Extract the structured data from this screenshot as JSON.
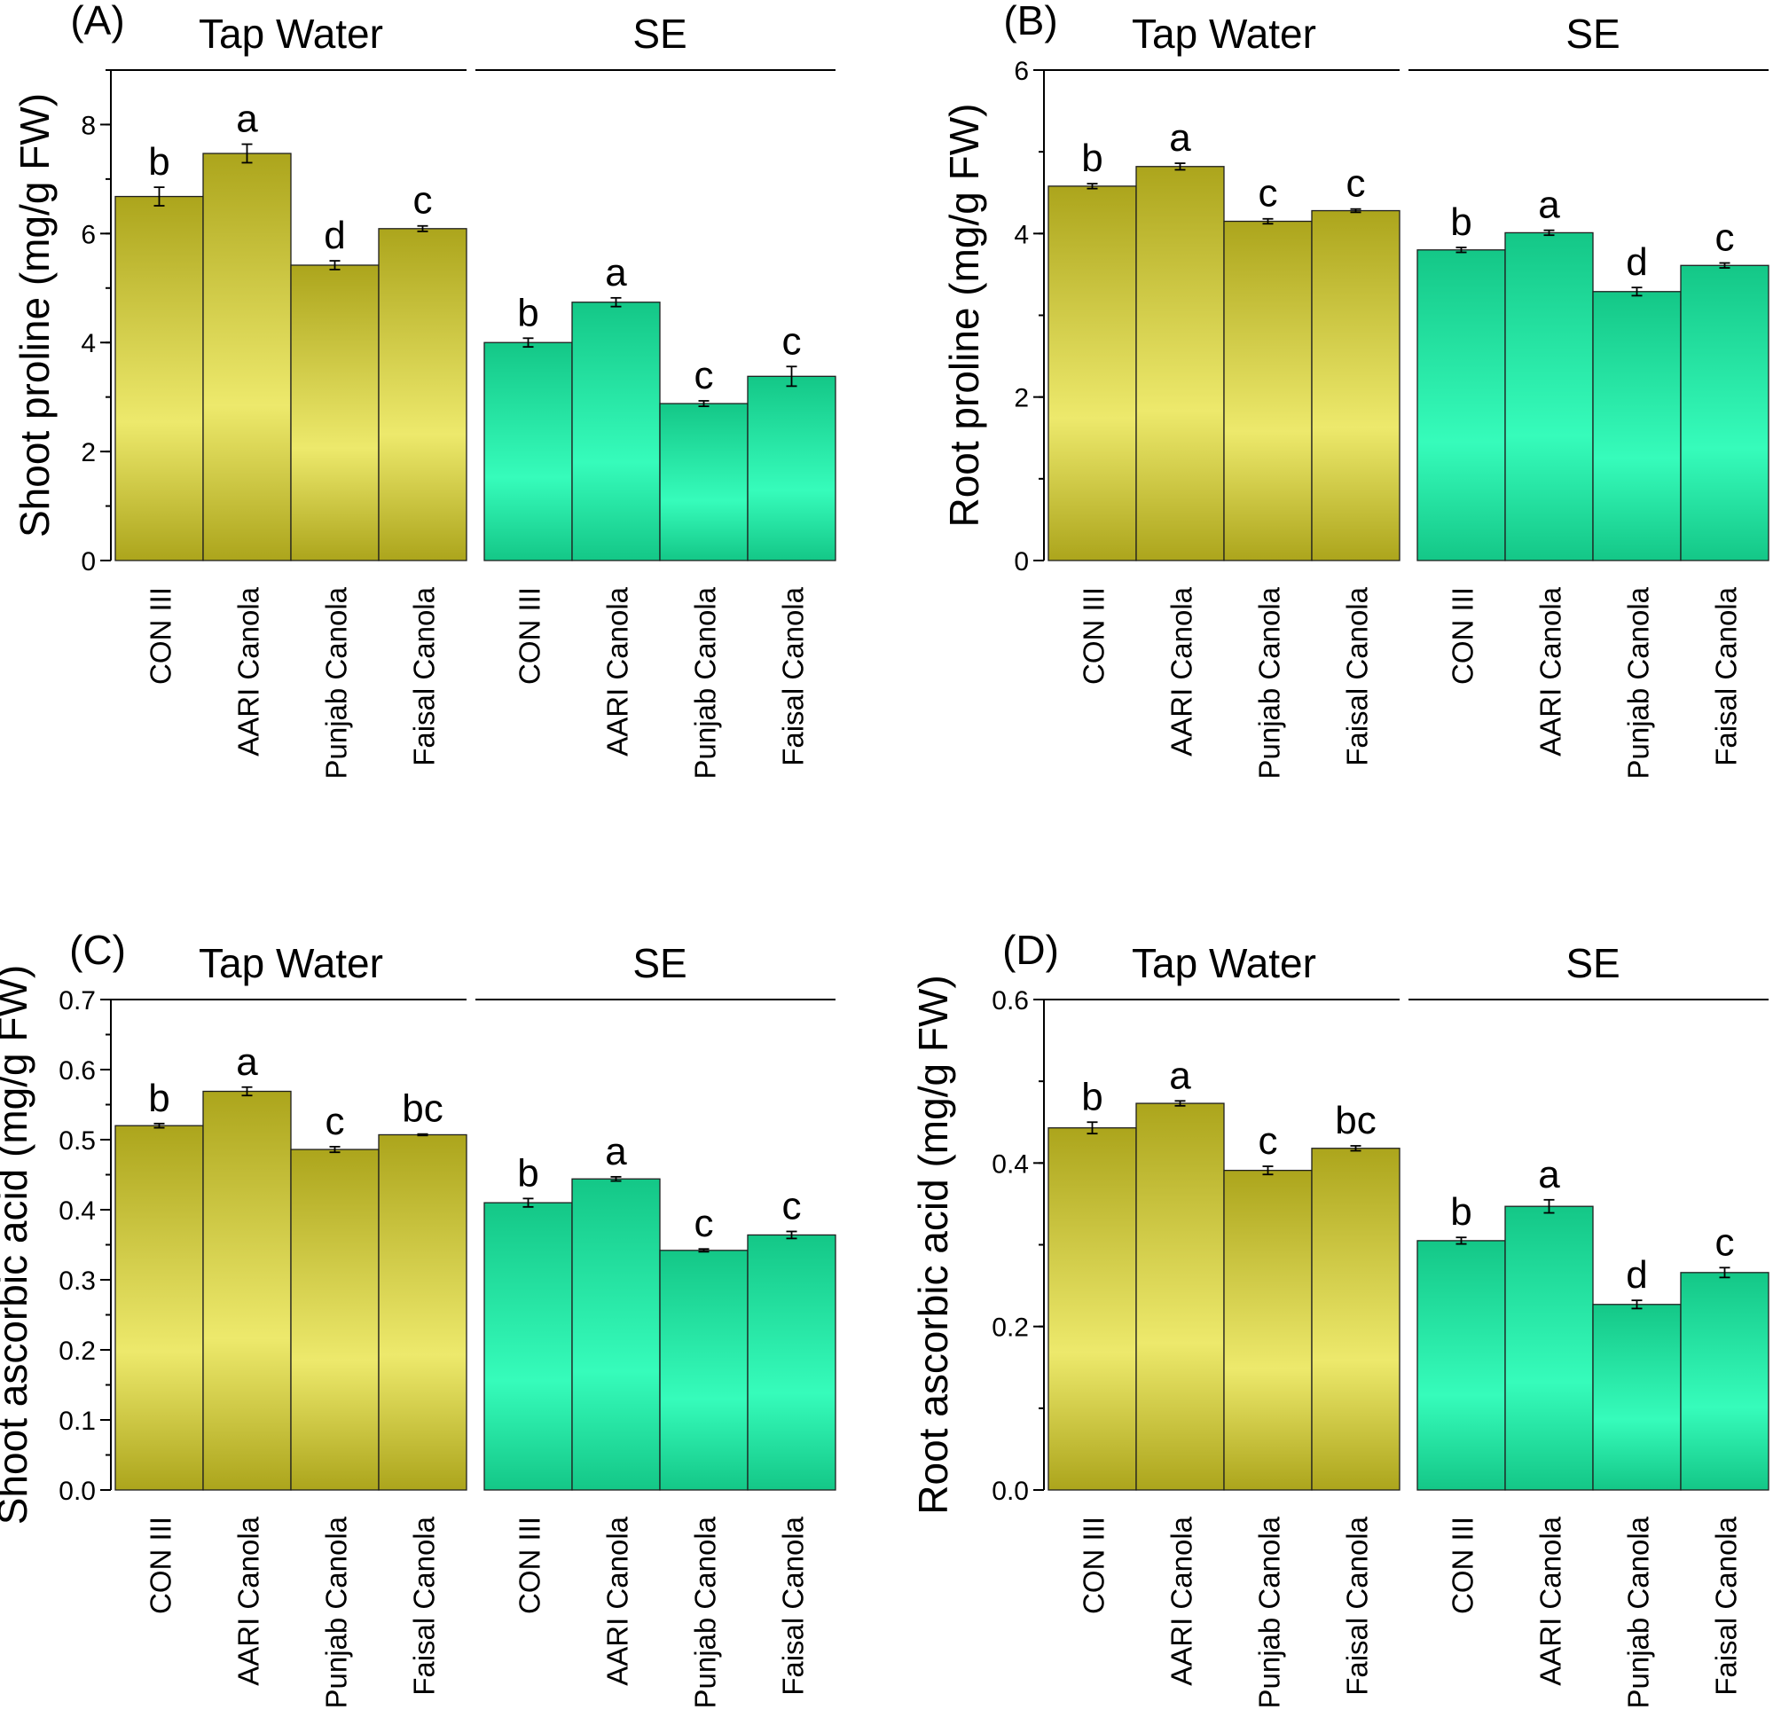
{
  "chart_data": [
    {
      "panel_label": "(A)",
      "type": "bar",
      "ylabel": "Shoot proline (mg/g FW)",
      "ylim": [
        0,
        9
      ],
      "yticks": [
        "0",
        "2",
        "4",
        "6",
        "8"
      ],
      "ytick_values": [
        0,
        2,
        4,
        6,
        8
      ],
      "minor_step": 1,
      "groups": [
        "Tap Water",
        "SE"
      ],
      "categories": [
        "CON III",
        "AARI Canola",
        "Punjab Canola",
        "Faisal Canola"
      ],
      "series": [
        {
          "name": "Tap Water",
          "values": [
            6.68,
            7.47,
            5.42,
            6.09
          ],
          "errors": [
            0.17,
            0.17,
            0.08,
            0.05
          ],
          "letters": [
            "b",
            "a",
            "d",
            "c"
          ]
        },
        {
          "name": "SE",
          "values": [
            4.0,
            4.74,
            2.88,
            3.38
          ],
          "errors": [
            0.08,
            0.08,
            0.05,
            0.18
          ],
          "letters": [
            "b",
            "a",
            "c",
            "c"
          ]
        }
      ]
    },
    {
      "panel_label": "(B)",
      "type": "bar",
      "ylabel": "Root proline (mg/g FW)",
      "ylim": [
        0,
        6
      ],
      "yticks": [
        "0",
        "2",
        "4",
        "6"
      ],
      "ytick_values": [
        0,
        2,
        4,
        6
      ],
      "minor_step": 1,
      "groups": [
        "Tap Water",
        "SE"
      ],
      "categories": [
        "CON III",
        "AARI Canola",
        "Punjab Canola",
        "Faisal Canola"
      ],
      "series": [
        {
          "name": "Tap Water",
          "values": [
            4.58,
            4.82,
            4.15,
            4.28
          ],
          "errors": [
            0.03,
            0.04,
            0.03,
            0.02
          ],
          "letters": [
            "b",
            "a",
            "c",
            "c"
          ]
        },
        {
          "name": "SE",
          "values": [
            3.8,
            4.01,
            3.29,
            3.61
          ],
          "errors": [
            0.03,
            0.03,
            0.05,
            0.03
          ],
          "letters": [
            "b",
            "a",
            "d",
            "c"
          ]
        }
      ]
    },
    {
      "panel_label": "(C)",
      "type": "bar",
      "ylabel": "Shoot ascorbic acid (mg/g FW)",
      "ylim": [
        0,
        0.7
      ],
      "yticks": [
        "0.0",
        "0.1",
        "0.2",
        "0.3",
        "0.4",
        "0.5",
        "0.6",
        "0.7"
      ],
      "ytick_values": [
        0,
        0.1,
        0.2,
        0.3,
        0.4,
        0.5,
        0.6,
        0.7
      ],
      "minor_step": 0.05,
      "groups": [
        "Tap Water",
        "SE"
      ],
      "categories": [
        "CON III",
        "AARI Canola",
        "Punjab Canola",
        "Faisal Canola"
      ],
      "series": [
        {
          "name": "Tap Water",
          "values": [
            0.52,
            0.569,
            0.486,
            0.507
          ],
          "errors": [
            0.003,
            0.006,
            0.004,
            0.001
          ],
          "letters": [
            "b",
            "a",
            "c",
            "bc"
          ]
        },
        {
          "name": "SE",
          "values": [
            0.41,
            0.444,
            0.342,
            0.364
          ],
          "errors": [
            0.006,
            0.003,
            0.002,
            0.005
          ],
          "letters": [
            "b",
            "a",
            "c",
            "c"
          ]
        }
      ]
    },
    {
      "panel_label": "(D)",
      "type": "bar",
      "ylabel": "Root ascorbic acid (mg/g FW)",
      "ylim": [
        0,
        0.6
      ],
      "yticks": [
        "0.0",
        "0.2",
        "0.4",
        "0.6"
      ],
      "ytick_values": [
        0,
        0.2,
        0.4,
        0.6
      ],
      "minor_step": 0.1,
      "groups": [
        "Tap Water",
        "SE"
      ],
      "categories": [
        "CON III",
        "AARI Canola",
        "Punjab Canola",
        "Faisal Canola"
      ],
      "series": [
        {
          "name": "Tap Water",
          "values": [
            0.443,
            0.473,
            0.391,
            0.418
          ],
          "errors": [
            0.007,
            0.003,
            0.005,
            0.003
          ],
          "letters": [
            "b",
            "a",
            "c",
            "bc"
          ]
        },
        {
          "name": "SE",
          "values": [
            0.305,
            0.347,
            0.227,
            0.266
          ],
          "errors": [
            0.004,
            0.008,
            0.005,
            0.006
          ],
          "letters": [
            "b",
            "a",
            "d",
            "c"
          ]
        }
      ]
    }
  ],
  "colors": {
    "tap_edge": "#aca51c",
    "tap_center": "#ede96c",
    "se_edge": "#14c787",
    "se_center": "#36fcbb",
    "outline": "#1f1f1f"
  }
}
